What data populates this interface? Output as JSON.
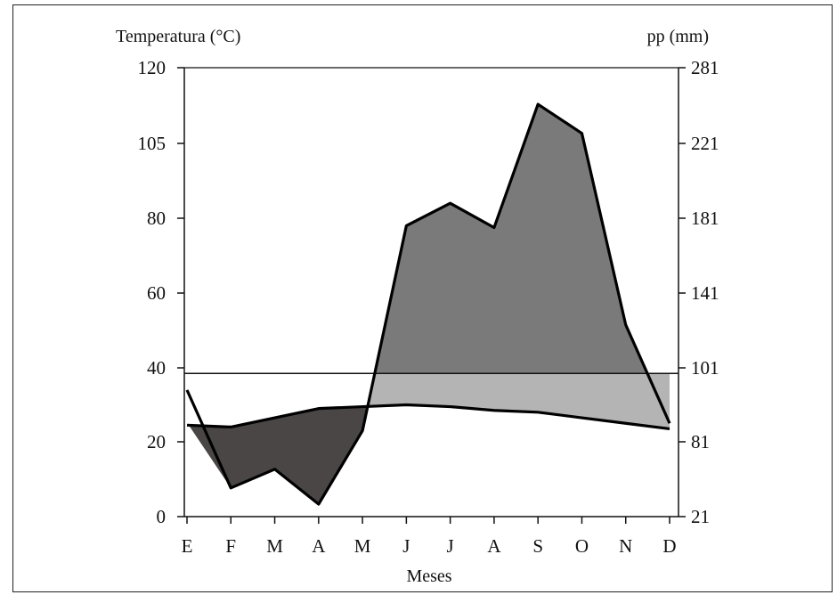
{
  "chart_data": {
    "type": "area",
    "ylabel_left": "Temperatura (°C)",
    "ylabel_right": "pp (mm)",
    "xlabel": "Meses",
    "categories": [
      "E",
      "F",
      "M",
      "A",
      "M",
      "J",
      "J",
      "A",
      "S",
      "O",
      "N",
      "D"
    ],
    "left_ticks": [
      "0",
      "20",
      "40",
      "60",
      "80",
      "105",
      "120"
    ],
    "right_ticks": [
      "21",
      "81",
      "101",
      "141",
      "181",
      "221",
      "281"
    ],
    "series": [
      {
        "name": "",
        "axis": "left",
        "values": [
          24.5,
          24,
          26.5,
          29,
          29.5,
          30,
          29.5,
          28.5,
          28,
          26.5,
          25,
          23.5
        ],
        "color": "#000000"
      },
      {
        "name": "",
        "axis": "right",
        "values": [
          95,
          44,
          59,
          31,
          84,
          177,
          189,
          176,
          252,
          229,
          124,
          86
        ],
        "color": "#000000"
      }
    ],
    "humid_fill_color": "#7a7a7a",
    "arid_fill_color": "#4a4646",
    "transition_fill_color": "#b4b4b4",
    "threshold_left_value": 38.5
  }
}
